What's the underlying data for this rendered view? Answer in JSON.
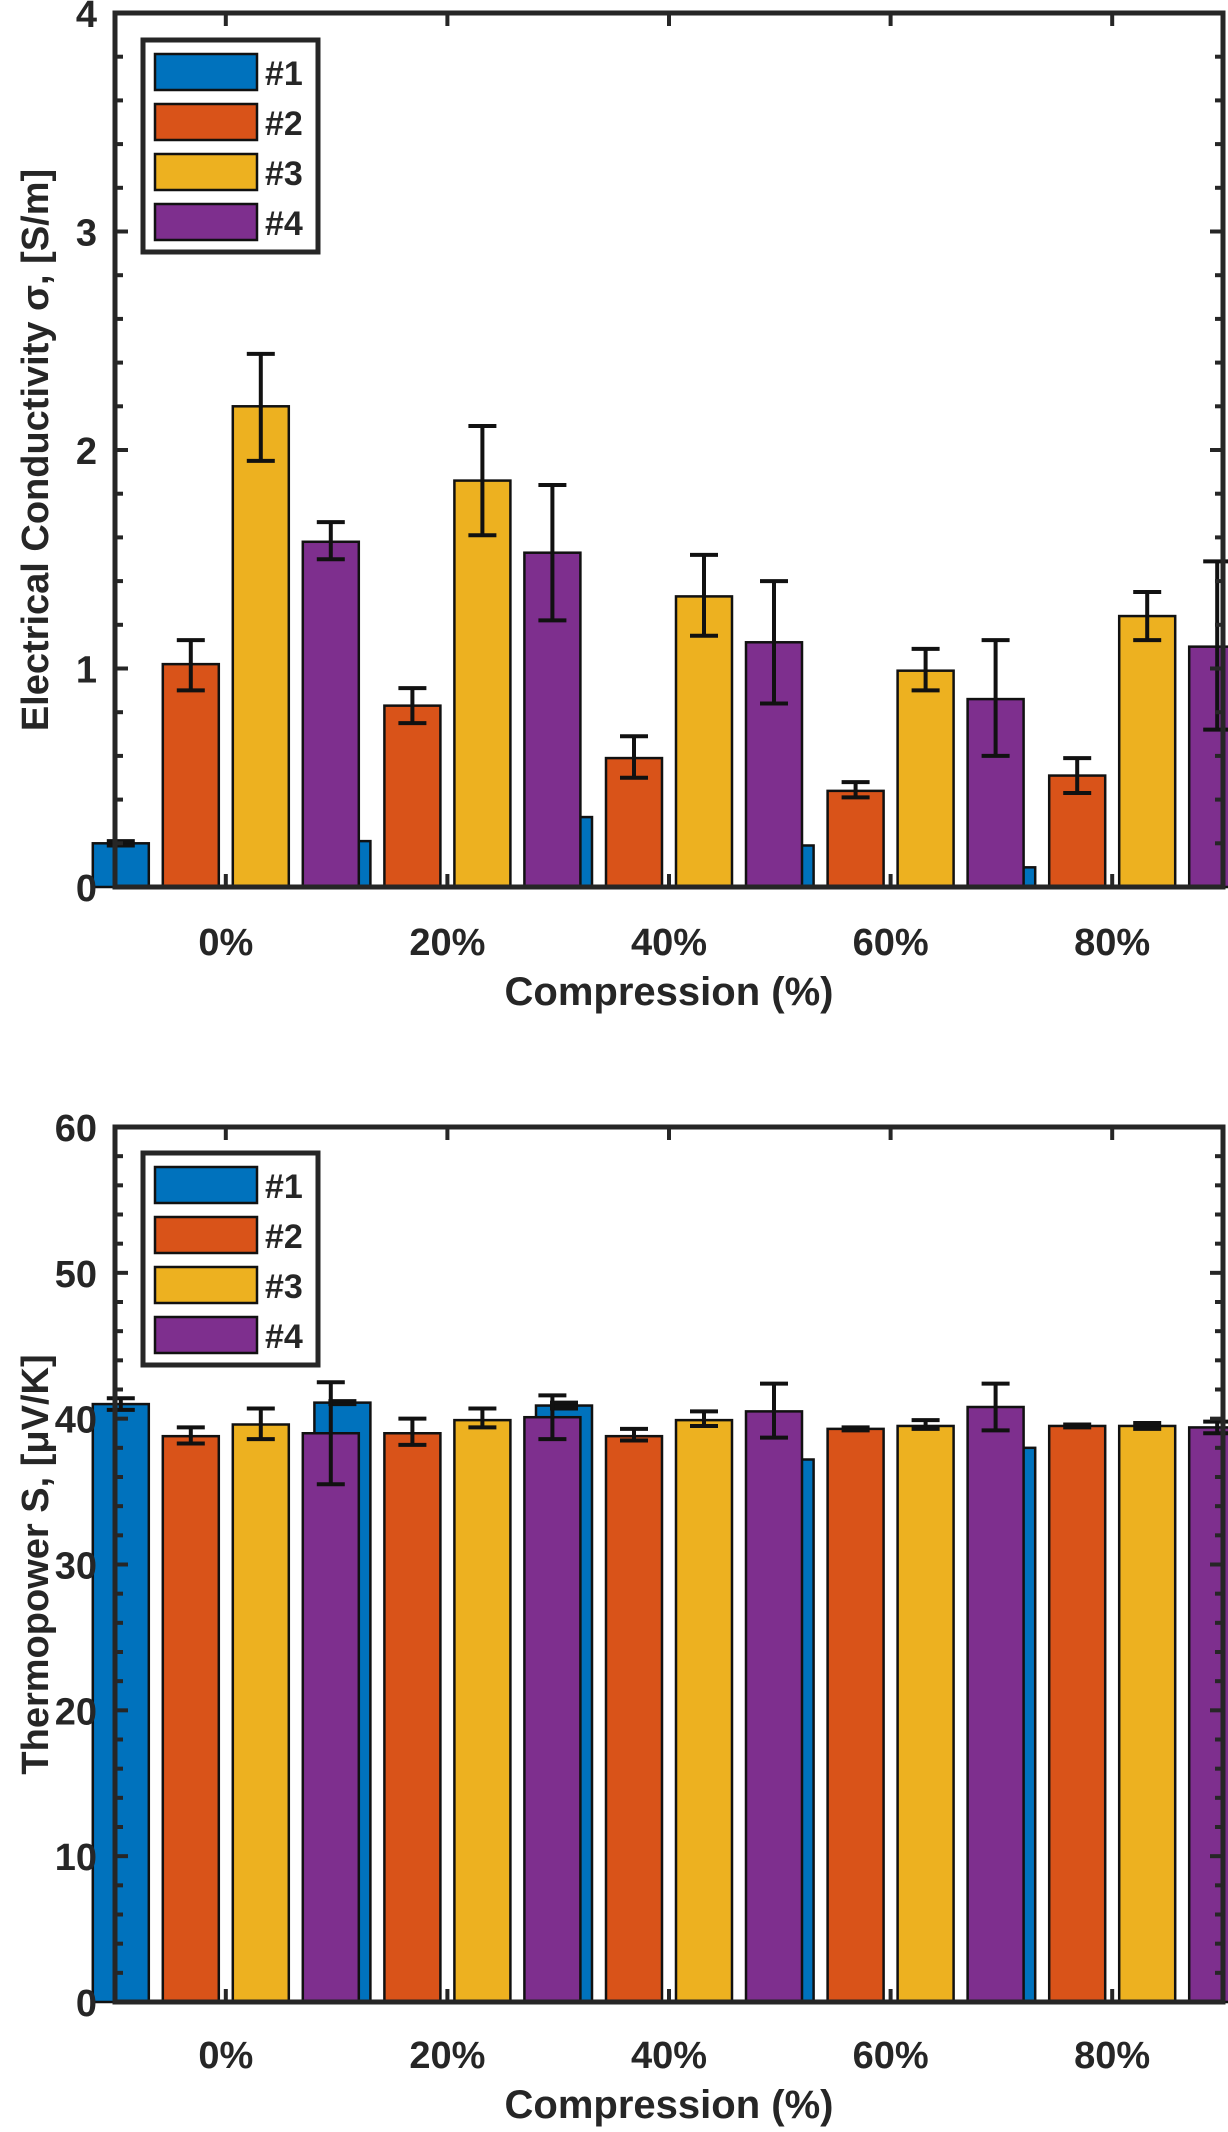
{
  "colors": {
    "#1": "#0072bd",
    "#2": "#d95319",
    "#3": "#edb120",
    "#4": "#7e2f8e",
    "axis": "#262626"
  },
  "chart_data": [
    {
      "type": "bar",
      "title": "",
      "xlabel": "Compression (%)",
      "ylabel": "Electrical Conductivity σ, [S/m]",
      "ylim": [
        0,
        4
      ],
      "yticks": [
        0,
        1,
        2,
        3,
        4
      ],
      "yminor_step": 0.2,
      "categories": [
        "0%",
        "20%",
        "40%",
        "60%",
        "80%"
      ],
      "legend": {
        "position": "top-left",
        "entries": [
          "#1",
          "#2",
          "#3",
          "#4"
        ]
      },
      "grid": false,
      "series": [
        {
          "name": "#1",
          "values": [
            0.2,
            0.21,
            0.32,
            0.19,
            0.09
          ],
          "err_low": [
            0.19,
            0.2,
            0.31,
            0.18,
            0.08
          ],
          "err_high": [
            0.21,
            0.22,
            0.33,
            0.2,
            0.1
          ]
        },
        {
          "name": "#2",
          "values": [
            1.02,
            0.83,
            0.59,
            0.44,
            0.51
          ],
          "err_low": [
            0.9,
            0.75,
            0.5,
            0.41,
            0.43
          ],
          "err_high": [
            1.13,
            0.91,
            0.69,
            0.48,
            0.59
          ]
        },
        {
          "name": "#3",
          "values": [
            2.2,
            1.86,
            1.33,
            0.99,
            1.24
          ],
          "err_low": [
            1.95,
            1.61,
            1.15,
            0.9,
            1.13
          ],
          "err_high": [
            2.44,
            2.11,
            1.52,
            1.09,
            1.35
          ]
        },
        {
          "name": "#4",
          "values": [
            1.58,
            1.53,
            1.12,
            0.86,
            1.1
          ],
          "err_low": [
            1.5,
            1.22,
            0.84,
            0.6,
            0.72
          ],
          "err_high": [
            1.67,
            1.84,
            1.4,
            1.13,
            1.49
          ]
        }
      ]
    },
    {
      "type": "bar",
      "title": "",
      "xlabel": "Compression (%)",
      "ylabel": "Thermopower S, [μV/K]",
      "ylim": [
        0,
        60
      ],
      "yticks": [
        0,
        10,
        20,
        30,
        40,
        50,
        60
      ],
      "yminor_step": 2,
      "categories": [
        "0%",
        "20%",
        "40%",
        "60%",
        "80%"
      ],
      "legend": {
        "position": "top-left",
        "entries": [
          "#1",
          "#2",
          "#3",
          "#4"
        ]
      },
      "grid": false,
      "series": [
        {
          "name": "#1",
          "values": [
            41.0,
            41.1,
            40.9,
            37.2,
            38.0
          ],
          "err_low": [
            40.6,
            41.0,
            40.7,
            36.5,
            37.6
          ],
          "err_high": [
            41.4,
            41.2,
            41.1,
            37.8,
            38.5
          ]
        },
        {
          "name": "#2",
          "values": [
            38.8,
            39.0,
            38.8,
            39.3,
            39.5
          ],
          "err_low": [
            38.3,
            38.2,
            38.5,
            39.2,
            39.4
          ],
          "err_high": [
            39.4,
            40.0,
            39.3,
            39.4,
            39.6
          ]
        },
        {
          "name": "#3",
          "values": [
            39.6,
            39.9,
            39.9,
            39.5,
            39.5
          ],
          "err_low": [
            38.6,
            39.4,
            39.5,
            39.3,
            39.3
          ],
          "err_high": [
            40.7,
            40.7,
            40.5,
            39.9,
            39.7
          ]
        },
        {
          "name": "#4",
          "values": [
            39.0,
            40.1,
            40.5,
            40.8,
            39.4
          ],
          "err_low": [
            35.5,
            38.6,
            38.7,
            39.2,
            39.0
          ],
          "err_high": [
            42.5,
            41.6,
            42.4,
            42.4,
            39.8
          ]
        }
      ]
    }
  ]
}
